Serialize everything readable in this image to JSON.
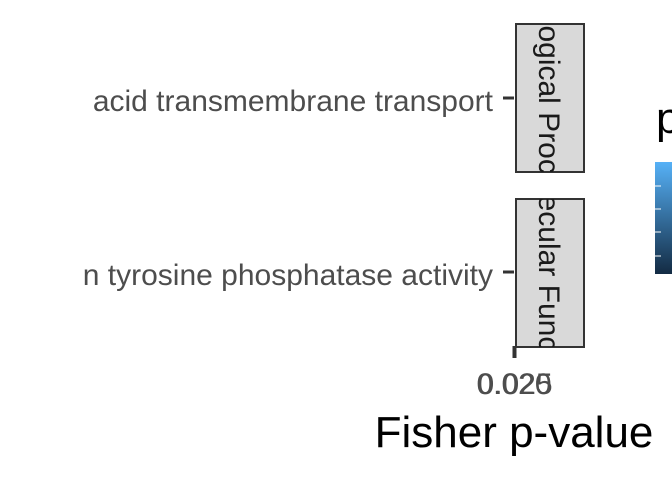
{
  "chart_data": {
    "type": "bar",
    "orientation": "horizontal",
    "facet_strips": [
      "Biological Process",
      "Molecular Function"
    ],
    "categories": [
      "acid transmembrane transport",
      "n tyrosine phosphatase activity"
    ],
    "x_ticks": [
      "0.020",
      "0.025"
    ],
    "xlabel": "Fisher p-value",
    "legend": {
      "title": "p",
      "colors": [
        "#56b1f7",
        "#132b43"
      ]
    }
  }
}
